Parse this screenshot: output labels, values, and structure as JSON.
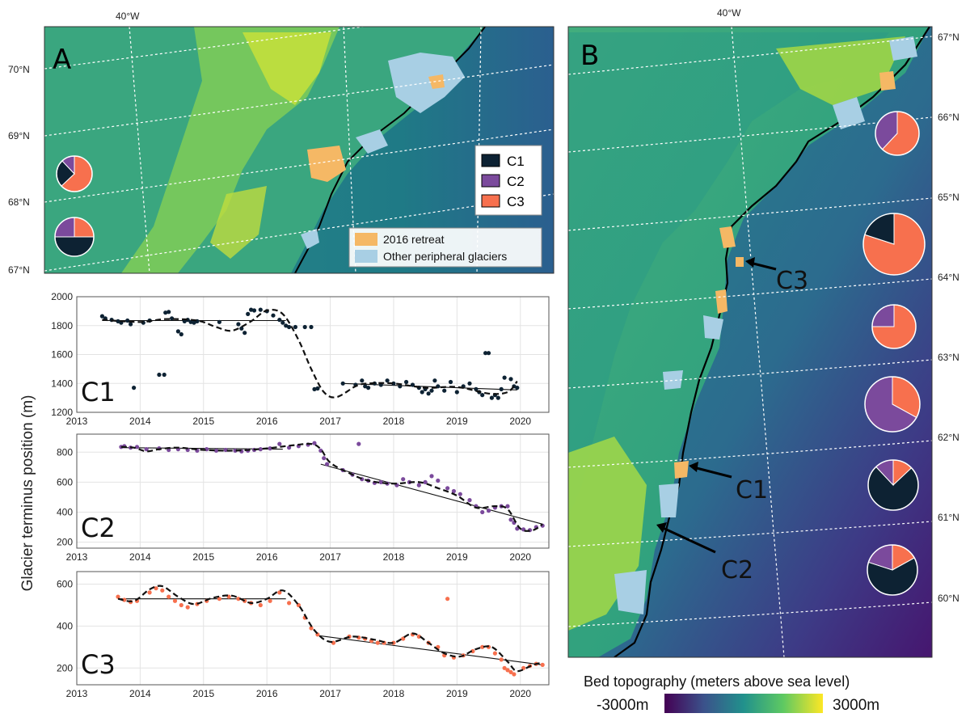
{
  "panel_a": {
    "label": "A",
    "lon_label": "40°W",
    "lat_labels": [
      "70°N",
      "69°N",
      "68°N",
      "67°N"
    ],
    "legend": {
      "c1": "C1",
      "c2": "C2",
      "c3": "C3"
    },
    "legend2": {
      "retreat": "2016 retreat",
      "peripheral": "Other peripheral glaciers"
    },
    "pies": [
      {
        "name": "pie-a-upper",
        "C1": 25,
        "C2": 12,
        "C3": 63
      },
      {
        "name": "pie-a-lower",
        "C1": 50,
        "C2": 25,
        "C3": 25
      }
    ]
  },
  "panel_b": {
    "label": "B",
    "lon_label": "40°W",
    "lat_labels": [
      "67°N",
      "66°N",
      "65°N",
      "64°N",
      "63°N",
      "62°N",
      "61°N",
      "60°N"
    ],
    "callouts": {
      "c3": "C3",
      "c1": "C1",
      "c2": "C2"
    },
    "pies": [
      {
        "name": "pie-b-66",
        "C1": 0,
        "C2": 38,
        "C3": 62
      },
      {
        "name": "pie-b-645",
        "C1": 20,
        "C2": 0,
        "C3": 80
      },
      {
        "name": "pie-b-635",
        "C1": 0,
        "C2": 25,
        "C3": 75
      },
      {
        "name": "pie-b-625",
        "C1": 0,
        "C2": 67,
        "C3": 33
      },
      {
        "name": "pie-b-615",
        "C1": 75,
        "C2": 12,
        "C3": 13
      },
      {
        "name": "pie-b-605",
        "C1": 63,
        "C2": 20,
        "C3": 17
      }
    ],
    "colorbar": {
      "title": "Bed topography (meters above sea level)",
      "min_label": "-3000m",
      "max_label": "3000m"
    }
  },
  "colors": {
    "C1": "#0d2233",
    "C2": "#7b4a9c",
    "C3": "#f7704e",
    "retreat": "#f5b865",
    "peripheral": "#a8cfe4"
  },
  "ylabel": "Glacier terminus position (m)",
  "chart_data": [
    {
      "type": "scatter",
      "title": "C1",
      "xlabel": "",
      "ylabel": "Glacier terminus position (m)",
      "xlim": [
        2013,
        2020.45
      ],
      "ylim": [
        1200,
        2000
      ],
      "xticks": [
        2013,
        2014,
        2015,
        2016,
        2017,
        2018,
        2019,
        2020
      ],
      "yticks": [
        1200,
        1400,
        1600,
        1800,
        2000
      ],
      "points": [
        [
          2013.4,
          1865
        ],
        [
          2013.45,
          1850
        ],
        [
          2013.55,
          1840
        ],
        [
          2013.65,
          1830
        ],
        [
          2013.7,
          1820
        ],
        [
          2013.8,
          1835
        ],
        [
          2013.85,
          1810
        ],
        [
          2013.9,
          1370
        ],
        [
          2014.05,
          1820
        ],
        [
          2014.15,
          1835
        ],
        [
          2014.3,
          1460
        ],
        [
          2014.38,
          1460
        ],
        [
          2014.4,
          1890
        ],
        [
          2014.45,
          1895
        ],
        [
          2014.5,
          1850
        ],
        [
          2014.6,
          1760
        ],
        [
          2014.65,
          1740
        ],
        [
          2014.7,
          1830
        ],
        [
          2014.75,
          1840
        ],
        [
          2014.8,
          1825
        ],
        [
          2014.85,
          1820
        ],
        [
          2014.9,
          1830
        ],
        [
          2015.25,
          1825
        ],
        [
          2015.55,
          1810
        ],
        [
          2015.6,
          1780
        ],
        [
          2015.65,
          1750
        ],
        [
          2015.7,
          1880
        ],
        [
          2015.75,
          1910
        ],
        [
          2015.8,
          1905
        ],
        [
          2015.9,
          1910
        ],
        [
          2016.0,
          1900
        ],
        [
          2016.1,
          1870
        ],
        [
          2016.2,
          1840
        ],
        [
          2016.25,
          1820
        ],
        [
          2016.3,
          1800
        ],
        [
          2016.35,
          1790
        ],
        [
          2016.45,
          1790
        ],
        [
          2016.6,
          1790
        ],
        [
          2016.7,
          1790
        ],
        [
          2016.75,
          1360
        ],
        [
          2016.8,
          1365
        ],
        [
          2017.2,
          1400
        ],
        [
          2017.4,
          1390
        ],
        [
          2017.5,
          1420
        ],
        [
          2017.55,
          1380
        ],
        [
          2017.6,
          1370
        ],
        [
          2017.7,
          1400
        ],
        [
          2017.8,
          1390
        ],
        [
          2017.9,
          1420
        ],
        [
          2018.0,
          1400
        ],
        [
          2018.1,
          1380
        ],
        [
          2018.2,
          1410
        ],
        [
          2018.3,
          1390
        ],
        [
          2018.4,
          1370
        ],
        [
          2018.45,
          1340
        ],
        [
          2018.5,
          1360
        ],
        [
          2018.55,
          1330
        ],
        [
          2018.6,
          1350
        ],
        [
          2018.65,
          1420
        ],
        [
          2018.7,
          1380
        ],
        [
          2018.8,
          1350
        ],
        [
          2018.9,
          1410
        ],
        [
          2019.0,
          1340
        ],
        [
          2019.1,
          1380
        ],
        [
          2019.2,
          1400
        ],
        [
          2019.3,
          1360
        ],
        [
          2019.35,
          1340
        ],
        [
          2019.4,
          1320
        ],
        [
          2019.45,
          1610
        ],
        [
          2019.5,
          1610
        ],
        [
          2019.55,
          1300
        ],
        [
          2019.6,
          1320
        ],
        [
          2019.65,
          1300
        ],
        [
          2019.7,
          1360
        ],
        [
          2019.75,
          1440
        ],
        [
          2019.85,
          1430
        ],
        [
          2019.9,
          1380
        ],
        [
          2019.95,
          1370
        ]
      ],
      "trend": [
        [
          2013.4,
          1835
        ],
        [
          2016.3,
          1835
        ]
      ],
      "trend2": [
        [
          2017.2,
          1400
        ],
        [
          2019.95,
          1355
        ]
      ],
      "smooth": [
        [
          2013.4,
          1840
        ],
        [
          2014.0,
          1825
        ],
        [
          2014.4,
          1845
        ],
        [
          2014.9,
          1835
        ],
        [
          2015.2,
          1790
        ],
        [
          2015.45,
          1765
        ],
        [
          2015.75,
          1830
        ],
        [
          2016.0,
          1905
        ],
        [
          2016.25,
          1880
        ],
        [
          2016.5,
          1700
        ],
        [
          2016.7,
          1500
        ],
        [
          2016.9,
          1340
        ],
        [
          2017.1,
          1305
        ],
        [
          2017.4,
          1380
        ],
        [
          2017.6,
          1400
        ],
        [
          2018.0,
          1400
        ],
        [
          2018.5,
          1370
        ],
        [
          2019.0,
          1375
        ],
        [
          2019.5,
          1330
        ],
        [
          2019.8,
          1340
        ],
        [
          2019.95,
          1415
        ]
      ]
    },
    {
      "type": "scatter",
      "title": "C2",
      "xlabel": "",
      "ylabel": "Glacier terminus position (m)",
      "xlim": [
        2013,
        2020.45
      ],
      "ylim": [
        160,
        920
      ],
      "xticks": [
        2013,
        2014,
        2015,
        2016,
        2017,
        2018,
        2019,
        2020
      ],
      "yticks": [
        200,
        400,
        600,
        800
      ],
      "points": [
        [
          2013.7,
          835
        ],
        [
          2013.75,
          840
        ],
        [
          2013.85,
          830
        ],
        [
          2013.95,
          835
        ],
        [
          2014.1,
          820
        ],
        [
          2014.3,
          825
        ],
        [
          2014.45,
          815
        ],
        [
          2014.6,
          820
        ],
        [
          2014.75,
          815
        ],
        [
          2014.9,
          810
        ],
        [
          2015.05,
          820
        ],
        [
          2015.2,
          810
        ],
        [
          2015.35,
          815
        ],
        [
          2015.5,
          810
        ],
        [
          2015.6,
          805
        ],
        [
          2015.7,
          810
        ],
        [
          2015.8,
          815
        ],
        [
          2015.9,
          820
        ],
        [
          2016.05,
          825
        ],
        [
          2016.2,
          855
        ],
        [
          2016.35,
          830
        ],
        [
          2016.5,
          840
        ],
        [
          2016.65,
          850
        ],
        [
          2016.75,
          860
        ],
        [
          2016.85,
          810
        ],
        [
          2016.9,
          760
        ],
        [
          2016.95,
          720
        ],
        [
          2017.2,
          680
        ],
        [
          2017.35,
          650
        ],
        [
          2017.45,
          855
        ],
        [
          2017.5,
          620
        ],
        [
          2017.6,
          610
        ],
        [
          2017.7,
          595
        ],
        [
          2017.8,
          600
        ],
        [
          2017.9,
          590
        ],
        [
          2018.05,
          580
        ],
        [
          2018.15,
          620
        ],
        [
          2018.25,
          600
        ],
        [
          2018.4,
          580
        ],
        [
          2018.5,
          600
        ],
        [
          2018.6,
          640
        ],
        [
          2018.7,
          610
        ],
        [
          2018.85,
          560
        ],
        [
          2018.95,
          540
        ],
        [
          2019.05,
          520
        ],
        [
          2019.2,
          480
        ],
        [
          2019.3,
          440
        ],
        [
          2019.4,
          400
        ],
        [
          2019.5,
          410
        ],
        [
          2019.6,
          430
        ],
        [
          2019.7,
          440
        ],
        [
          2019.8,
          440
        ],
        [
          2019.85,
          350
        ],
        [
          2019.9,
          330
        ],
        [
          2019.95,
          290
        ],
        [
          2020.05,
          285
        ],
        [
          2020.15,
          280
        ],
        [
          2020.25,
          300
        ],
        [
          2020.35,
          310
        ]
      ],
      "trend": [
        [
          2013.7,
          830
        ],
        [
          2016.25,
          820
        ]
      ],
      "trend2": [
        [
          2016.85,
          720
        ],
        [
          2020.35,
          320
        ]
      ],
      "smooth": [
        [
          2013.7,
          835
        ],
        [
          2013.9,
          830
        ],
        [
          2014.1,
          805
        ],
        [
          2014.3,
          820
        ],
        [
          2014.6,
          830
        ],
        [
          2015.0,
          815
        ],
        [
          2015.5,
          810
        ],
        [
          2016.0,
          825
        ],
        [
          2016.4,
          845
        ],
        [
          2016.7,
          855
        ],
        [
          2016.85,
          820
        ],
        [
          2017.0,
          730
        ],
        [
          2017.3,
          660
        ],
        [
          2017.6,
          610
        ],
        [
          2018.0,
          590
        ],
        [
          2018.4,
          600
        ],
        [
          2018.7,
          560
        ],
        [
          2019.0,
          510
        ],
        [
          2019.3,
          430
        ],
        [
          2019.6,
          440
        ],
        [
          2019.8,
          420
        ],
        [
          2020.0,
          290
        ],
        [
          2020.2,
          280
        ],
        [
          2020.35,
          320
        ]
      ]
    },
    {
      "type": "scatter",
      "title": "C3",
      "xlabel": "",
      "ylabel": "Glacier terminus position (m)",
      "xlim": [
        2013,
        2020.45
      ],
      "ylim": [
        120,
        660
      ],
      "xticks": [
        2013,
        2014,
        2015,
        2016,
        2017,
        2018,
        2019,
        2020
      ],
      "yticks": [
        200,
        400,
        600
      ],
      "points": [
        [
          2013.65,
          540
        ],
        [
          2013.75,
          525
        ],
        [
          2013.85,
          515
        ],
        [
          2013.95,
          520
        ],
        [
          2014.15,
          560
        ],
        [
          2014.25,
          580
        ],
        [
          2014.35,
          570
        ],
        [
          2014.45,
          540
        ],
        [
          2014.55,
          520
        ],
        [
          2014.65,
          500
        ],
        [
          2014.75,
          490
        ],
        [
          2014.9,
          505
        ],
        [
          2015.05,
          520
        ],
        [
          2015.25,
          530
        ],
        [
          2015.4,
          540
        ],
        [
          2015.55,
          530
        ],
        [
          2015.65,
          520
        ],
        [
          2015.75,
          510
        ],
        [
          2015.9,
          500
        ],
        [
          2016.05,
          520
        ],
        [
          2016.2,
          560
        ],
        [
          2016.35,
          510
        ],
        [
          2016.5,
          500
        ],
        [
          2016.6,
          440
        ],
        [
          2016.7,
          390
        ],
        [
          2016.8,
          360
        ],
        [
          2017.05,
          320
        ],
        [
          2017.3,
          350
        ],
        [
          2017.45,
          345
        ],
        [
          2017.55,
          340
        ],
        [
          2017.65,
          330
        ],
        [
          2017.75,
          320
        ],
        [
          2017.85,
          320
        ],
        [
          2018.0,
          320
        ],
        [
          2018.15,
          340
        ],
        [
          2018.3,
          360
        ],
        [
          2018.4,
          350
        ],
        [
          2018.55,
          320
        ],
        [
          2018.7,
          300
        ],
        [
          2018.8,
          260
        ],
        [
          2018.85,
          530
        ],
        [
          2018.95,
          250
        ],
        [
          2019.1,
          260
        ],
        [
          2019.25,
          280
        ],
        [
          2019.4,
          300
        ],
        [
          2019.5,
          300
        ],
        [
          2019.6,
          270
        ],
        [
          2019.7,
          240
        ],
        [
          2019.75,
          200
        ],
        [
          2019.8,
          190
        ],
        [
          2019.85,
          180
        ],
        [
          2019.9,
          170
        ],
        [
          2020.05,
          200
        ],
        [
          2020.15,
          210
        ],
        [
          2020.25,
          220
        ],
        [
          2020.35,
          215
        ]
      ],
      "trend": [
        [
          2013.65,
          530
        ],
        [
          2016.3,
          530
        ]
      ],
      "trend2": [
        [
          2016.8,
          355
        ],
        [
          2020.35,
          215
        ]
      ],
      "smooth": [
        [
          2013.65,
          530
        ],
        [
          2013.9,
          520
        ],
        [
          2014.15,
          575
        ],
        [
          2014.35,
          590
        ],
        [
          2014.6,
          540
        ],
        [
          2014.85,
          505
        ],
        [
          2015.15,
          535
        ],
        [
          2015.45,
          545
        ],
        [
          2015.75,
          510
        ],
        [
          2016.0,
          530
        ],
        [
          2016.25,
          570
        ],
        [
          2016.5,
          500
        ],
        [
          2016.75,
          380
        ],
        [
          2017.0,
          325
        ],
        [
          2017.35,
          350
        ],
        [
          2017.7,
          335
        ],
        [
          2018.0,
          320
        ],
        [
          2018.3,
          365
        ],
        [
          2018.55,
          320
        ],
        [
          2018.8,
          270
        ],
        [
          2019.05,
          255
        ],
        [
          2019.3,
          290
        ],
        [
          2019.55,
          300
        ],
        [
          2019.8,
          230
        ],
        [
          2019.95,
          185
        ],
        [
          2020.2,
          215
        ],
        [
          2020.35,
          225
        ]
      ]
    }
  ]
}
